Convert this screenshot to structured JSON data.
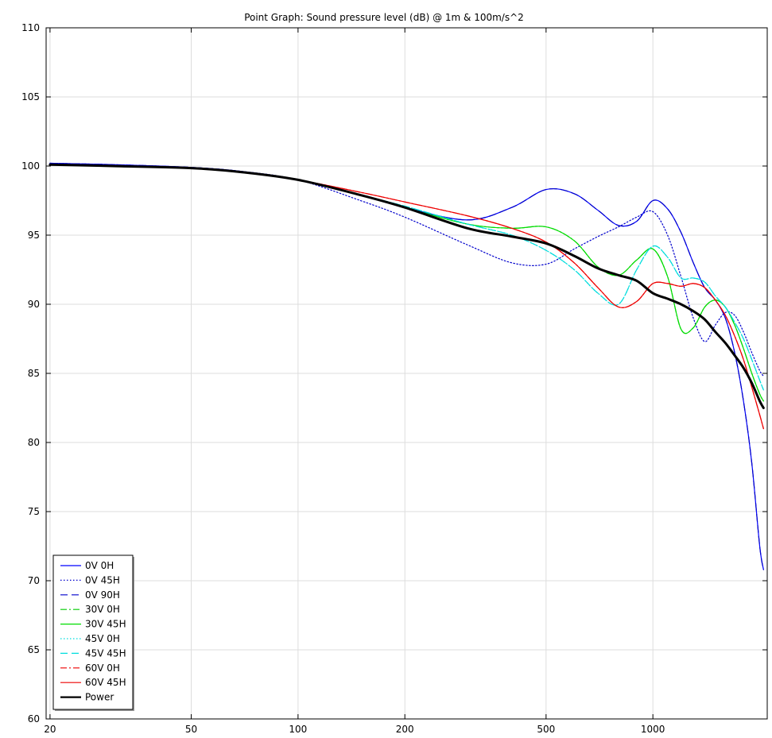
{
  "chart_data": {
    "type": "line",
    "title": "Point Graph: Sound pressure level (dB) @ 1m & 100m/s^2",
    "xlabel": "",
    "ylabel": "",
    "x_scale": "log",
    "xlim": [
      19.5,
      2100
    ],
    "ylim": [
      60,
      110
    ],
    "x_ticks": [
      20,
      50,
      100,
      200,
      500,
      1000
    ],
    "y_ticks": [
      60,
      65,
      70,
      75,
      80,
      85,
      90,
      95,
      100,
      105,
      110
    ],
    "grid": true,
    "legend_position": "bottom-left",
    "x": [
      20,
      30,
      50,
      70,
      100,
      150,
      200,
      300,
      400,
      500,
      600,
      700,
      800,
      900,
      1000,
      1100,
      1200,
      1300,
      1400,
      1500,
      1600,
      1700,
      1800,
      1900,
      2000,
      2050
    ],
    "series": [
      {
        "name": "0V 0H",
        "color": "#0000ff",
        "dash": "solid",
        "values": [
          100.2,
          100.1,
          99.9,
          99.6,
          99.0,
          97.9,
          97.0,
          96.1,
          97.0,
          98.3,
          98.0,
          96.8,
          95.7,
          96.0,
          97.5,
          96.9,
          95.2,
          93.0,
          91.2,
          90.3,
          89.0,
          86.5,
          83.0,
          78.5,
          72.5,
          70.8
        ]
      },
      {
        "name": "0V 45H",
        "color": "#0000cc",
        "dash": "dot",
        "values": [
          100.2,
          100.1,
          99.9,
          99.6,
          99.0,
          97.5,
          96.3,
          94.3,
          93.0,
          92.9,
          94.0,
          94.9,
          95.6,
          96.3,
          96.7,
          95.0,
          92.0,
          89.0,
          87.3,
          88.5,
          89.4,
          89.2,
          88.0,
          86.5,
          85.2,
          84.8
        ]
      },
      {
        "name": "0V 90H",
        "color": "#0000cc",
        "dash": "dash",
        "values": [
          100.2,
          100.1,
          99.9,
          99.6,
          99.0,
          97.9,
          97.0,
          96.1,
          97.0,
          98.3,
          98.0,
          96.8,
          95.7,
          96.0,
          97.5,
          96.9,
          95.2,
          93.0,
          91.2,
          90.3,
          89.0,
          86.5,
          83.0,
          78.5,
          72.5,
          70.8
        ]
      },
      {
        "name": "30V 0H",
        "color": "#00cc00",
        "dash": "dashdot",
        "values": [
          100.1,
          100.0,
          99.85,
          99.55,
          99.0,
          97.9,
          97.0,
          95.8,
          95.5,
          95.6,
          94.6,
          92.7,
          92.1,
          93.2,
          94.0,
          92.0,
          88.2,
          88.3,
          89.8,
          90.3,
          89.8,
          88.5,
          86.8,
          85.0,
          83.5,
          83.0
        ]
      },
      {
        "name": "30V 45H",
        "color": "#00dd00",
        "dash": "solid",
        "values": [
          100.1,
          100.0,
          99.85,
          99.55,
          99.0,
          97.9,
          97.0,
          95.8,
          95.5,
          95.6,
          94.6,
          92.7,
          92.1,
          93.2,
          94.0,
          92.0,
          88.2,
          88.3,
          89.8,
          90.3,
          89.8,
          88.5,
          86.8,
          85.0,
          83.5,
          83.0
        ]
      },
      {
        "name": "45V 0H",
        "color": "#00dddd",
        "dash": "dot",
        "values": [
          100.1,
          100.0,
          99.85,
          99.55,
          99.0,
          97.9,
          97.1,
          95.8,
          95.0,
          93.9,
          92.5,
          90.8,
          90.0,
          92.5,
          94.2,
          93.4,
          91.9,
          91.9,
          91.6,
          90.6,
          89.8,
          88.7,
          87.5,
          86.0,
          84.5,
          83.8
        ]
      },
      {
        "name": "45V 45H",
        "color": "#00dddd",
        "dash": "dash",
        "values": [
          100.1,
          100.0,
          99.85,
          99.55,
          99.0,
          97.9,
          97.1,
          95.8,
          95.0,
          93.9,
          92.5,
          90.8,
          90.0,
          92.5,
          94.2,
          93.4,
          91.9,
          91.9,
          91.6,
          90.6,
          89.8,
          88.7,
          87.5,
          86.0,
          84.5,
          83.8
        ]
      },
      {
        "name": "60V 0H",
        "color": "#ee0000",
        "dash": "dashdot",
        "values": [
          100.1,
          100.0,
          99.85,
          99.55,
          99.0,
          98.1,
          97.4,
          96.4,
          95.5,
          94.5,
          93.0,
          91.2,
          89.8,
          90.2,
          91.5,
          91.5,
          91.3,
          91.5,
          91.2,
          90.3,
          89.2,
          87.7,
          86.0,
          84.0,
          82.0,
          81.0
        ]
      },
      {
        "name": "60V 45H",
        "color": "#ee0000",
        "dash": "solid",
        "values": [
          100.1,
          100.0,
          99.85,
          99.55,
          99.0,
          98.1,
          97.4,
          96.4,
          95.5,
          94.5,
          93.0,
          91.2,
          89.8,
          90.2,
          91.5,
          91.5,
          91.3,
          91.5,
          91.2,
          90.3,
          89.2,
          87.7,
          86.0,
          84.0,
          82.0,
          81.0
        ]
      },
      {
        "name": "Power",
        "color": "#000000",
        "dash": "thick",
        "values": [
          100.1,
          100.0,
          99.85,
          99.55,
          99.0,
          97.9,
          97.0,
          95.5,
          94.9,
          94.4,
          93.5,
          92.6,
          92.1,
          91.7,
          90.8,
          90.4,
          90.0,
          89.5,
          88.9,
          88.0,
          87.2,
          86.3,
          85.4,
          84.3,
          83.0,
          82.5
        ]
      }
    ]
  }
}
